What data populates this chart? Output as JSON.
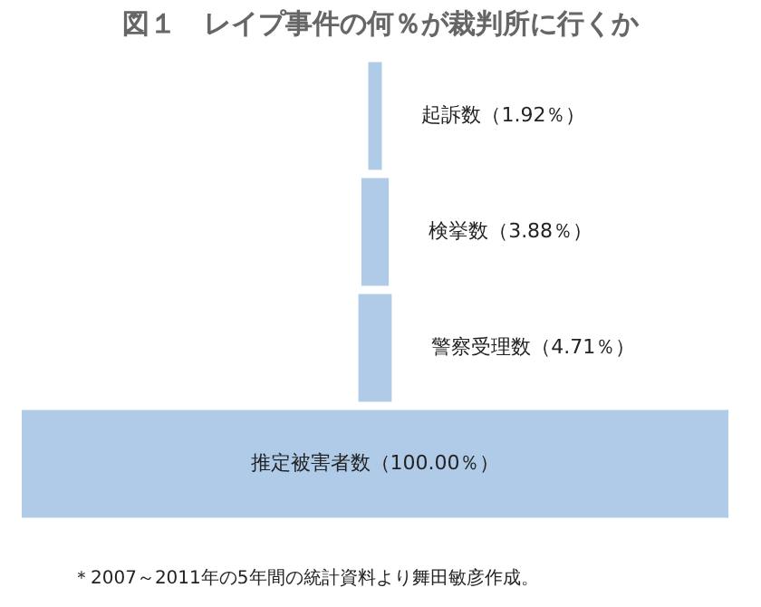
{
  "chart_data": {
    "type": "other",
    "title": "図１　レイプ事件の何％が裁判所に行くか",
    "categories": [
      "起訴数",
      "検挙数",
      "警察受理数",
      "推定被害者数"
    ],
    "values": [
      1.92,
      3.88,
      4.71,
      100.0
    ],
    "value_labels": [
      "（1.92％）",
      "（3.88％）",
      "（4.71％）",
      "（100.00％）"
    ],
    "color": "#afcbe8",
    "annotations": [
      "＊2007～2011年の5年間の統計資料より舞田敏彦作成。"
    ]
  }
}
